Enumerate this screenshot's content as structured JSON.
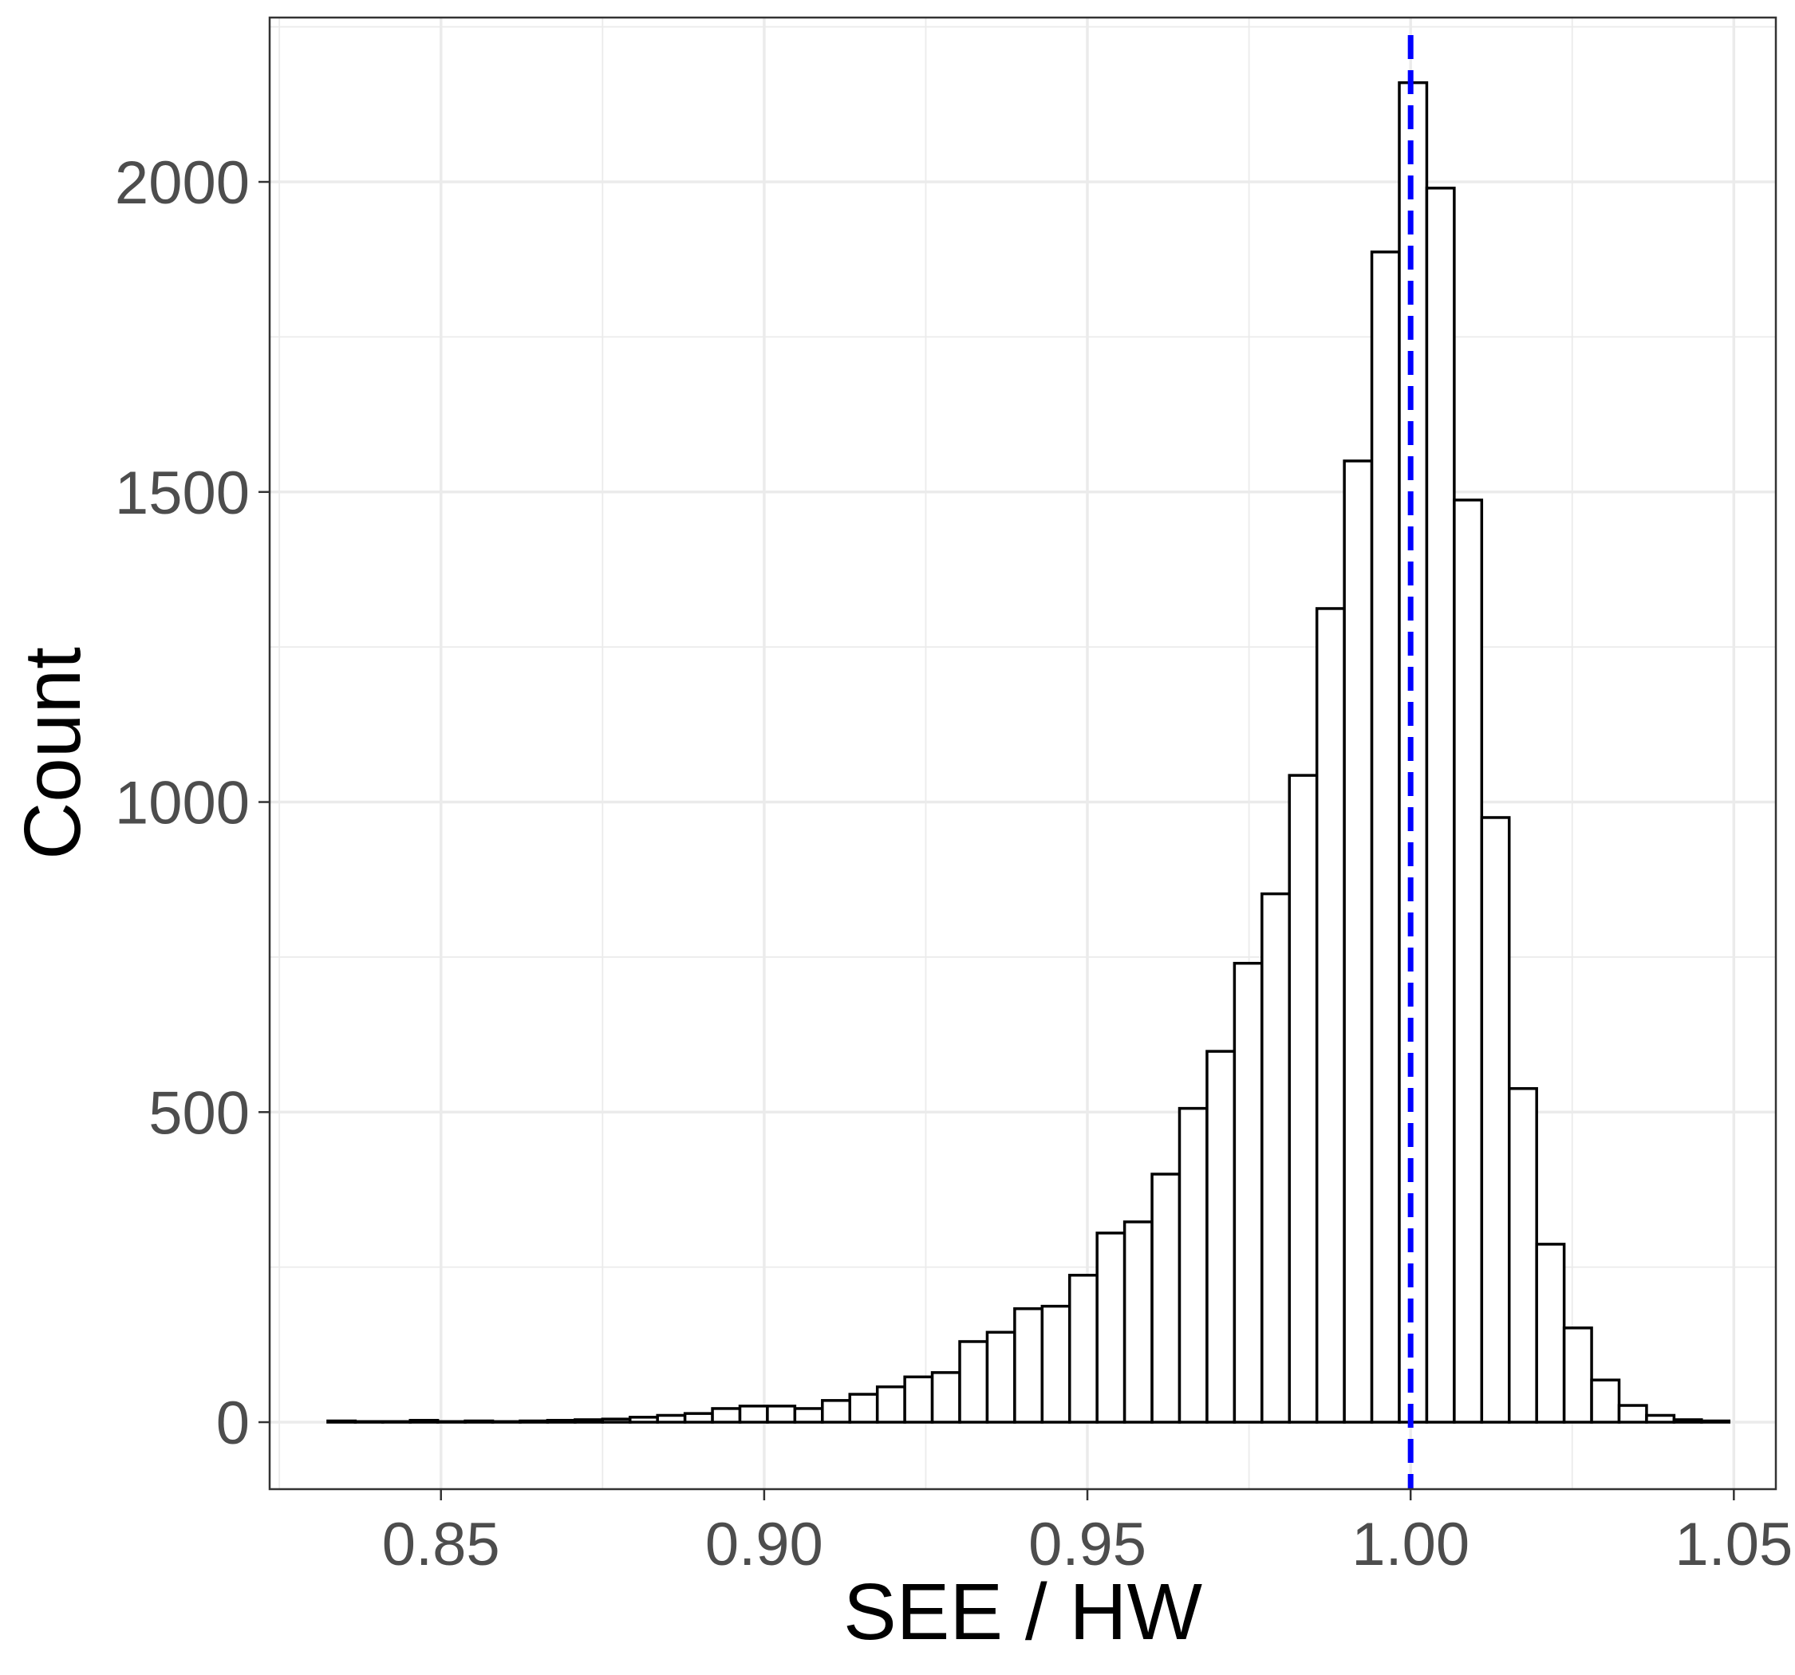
{
  "chart_data": {
    "type": "bar",
    "xlabel": "SEE / HW",
    "ylabel": "Count",
    "xlim": [
      0.8235,
      1.0565
    ],
    "ylim": [
      -108,
      2265
    ],
    "x_ticks": [
      "0.85",
      "0.90",
      "0.95",
      "1.00",
      "1.05"
    ],
    "x_tick_values": [
      0.85,
      0.9,
      0.95,
      1.0,
      1.05
    ],
    "y_ticks": [
      "0",
      "500",
      "1000",
      "1500",
      "2000"
    ],
    "y_tick_values": [
      0,
      500,
      1000,
      1500,
      2000
    ],
    "grid": true,
    "bin_width": 0.00425,
    "bin_start": 0.8325,
    "values": [
      2,
      1,
      1,
      3,
      1,
      2,
      1,
      2,
      3,
      4,
      5,
      8,
      11,
      14,
      22,
      26,
      26,
      22,
      35,
      45,
      57,
      73,
      80,
      130,
      145,
      183,
      187,
      237,
      305,
      323,
      400,
      506,
      598,
      740,
      852,
      1043,
      1312,
      1550,
      1887,
      2160,
      1990,
      1487,
      975,
      538,
      287,
      152,
      68,
      27,
      11,
      4,
      2
    ],
    "reference_line": {
      "x": 1.0,
      "color": "#0000ff",
      "style": "dashed"
    },
    "bar_fill": "#ffffff",
    "bar_outline": "#000000"
  }
}
